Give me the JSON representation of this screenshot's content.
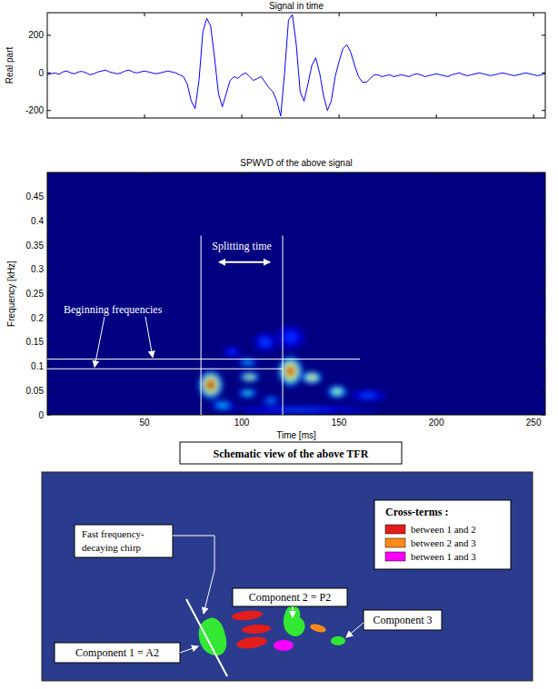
{
  "chart_data": [
    {
      "type": "line",
      "title": "Signal in time",
      "ylabel": "Real part",
      "x": [
        0,
        2,
        4,
        6,
        8,
        10,
        12,
        14,
        16,
        18,
        20,
        22,
        24,
        26,
        28,
        30,
        32,
        34,
        36,
        38,
        40,
        42,
        44,
        46,
        48,
        50,
        52,
        54,
        56,
        58,
        60,
        62,
        64,
        66,
        68,
        70,
        72,
        74,
        76,
        78,
        80,
        82,
        84,
        86,
        88,
        90,
        92,
        94,
        96,
        98,
        100,
        102,
        104,
        106,
        108,
        110,
        112,
        114,
        116,
        118,
        120,
        122,
        124,
        126,
        128,
        130,
        132,
        134,
        136,
        138,
        140,
        142,
        144,
        146,
        148,
        150,
        152,
        154,
        156,
        158,
        160,
        162,
        164,
        166,
        168,
        170,
        172,
        174,
        176,
        178,
        180,
        182,
        184,
        186,
        188,
        190,
        192,
        194,
        196,
        198,
        200,
        202,
        204,
        206,
        208,
        210,
        212,
        214,
        216,
        218,
        220,
        222,
        224,
        226,
        228,
        230,
        232,
        234,
        236,
        238,
        240,
        242,
        244,
        246,
        248,
        250,
        252,
        254,
        256
      ],
      "values": [
        -10,
        -5,
        0,
        -8,
        5,
        10,
        0,
        -5,
        5,
        8,
        0,
        -10,
        -5,
        5,
        10,
        15,
        5,
        0,
        -5,
        0,
        10,
        15,
        5,
        0,
        5,
        10,
        5,
        0,
        -5,
        0,
        5,
        10,
        5,
        0,
        -10,
        -20,
        -60,
        -150,
        -190,
        -40,
        220,
        290,
        250,
        80,
        -110,
        -180,
        -110,
        -40,
        -20,
        -30,
        -10,
        0,
        -20,
        -40,
        -30,
        -20,
        -50,
        -80,
        -100,
        -150,
        -230,
        0,
        280,
        310,
        150,
        -100,
        -150,
        -60,
        40,
        80,
        0,
        -120,
        -200,
        -150,
        -20,
        60,
        130,
        150,
        110,
        40,
        -20,
        -50,
        -50,
        -30,
        -10,
        -10,
        -20,
        -15,
        -10,
        -20,
        -15,
        -10,
        -15,
        -20,
        -10,
        -5,
        -10,
        -20,
        -15,
        -10,
        -5,
        -10,
        -15,
        -20,
        -10,
        -5,
        0,
        -10,
        -15,
        -10,
        -5,
        0,
        -5,
        -10,
        -15,
        -10,
        -5,
        0,
        -5,
        -10,
        -15,
        -10,
        -5,
        0,
        -5,
        -10,
        -15,
        -10,
        -5
      ],
      "color": "#0000ff",
      "xlim": [
        0,
        256
      ],
      "ylim": [
        -240,
        320
      ],
      "xticks": [
        50,
        100,
        150,
        200,
        250
      ],
      "yticks": [
        -200,
        0,
        200
      ],
      "tick_labels": "y",
      "grid": false
    },
    {
      "type": "heatmap",
      "title": "SPWVD of the above signal",
      "xlabel": "Time [ms]",
      "ylabel": "Frequency [kHz]",
      "xlim": [
        0,
        256
      ],
      "ylim": [
        0,
        0.5
      ],
      "xticks": [
        50,
        100,
        150,
        200,
        250
      ],
      "yticks": [
        0,
        0.05,
        0.1,
        0.15,
        0.2,
        0.25,
        0.3,
        0.35,
        0.4,
        0.45
      ],
      "blobs": [
        {
          "x": 130,
          "y": 0.01,
          "dx": 40,
          "dy": 0.008,
          "value": 0.2
        },
        {
          "x": 165,
          "y": 0.04,
          "dx": 10,
          "dy": 0.012,
          "value": 0.2
        },
        {
          "x": 112,
          "y": 0.15,
          "dx": 6,
          "dy": 0.02,
          "value": 0.2
        },
        {
          "x": 125,
          "y": 0.16,
          "dx": 8,
          "dy": 0.025,
          "value": 0.18
        },
        {
          "x": 95,
          "y": 0.13,
          "dx": 5,
          "dy": 0.012,
          "value": 0.18
        },
        {
          "x": 90,
          "y": 0.02,
          "dx": 6,
          "dy": 0.01,
          "value": 0.35
        },
        {
          "x": 115,
          "y": 0.03,
          "dx": 5,
          "dy": 0.008,
          "value": 0.3
        },
        {
          "x": 103,
          "y": 0.108,
          "dx": 5,
          "dy": 0.008,
          "value": 0.35
        },
        {
          "x": 104,
          "y": 0.078,
          "dx": 5,
          "dy": 0.009,
          "value": 0.7
        },
        {
          "x": 103,
          "y": 0.045,
          "dx": 5,
          "dy": 0.008,
          "value": 0.45
        },
        {
          "x": 149,
          "y": 0.048,
          "dx": 5,
          "dy": 0.012,
          "value": 0.6
        },
        {
          "x": 136,
          "y": 0.077,
          "dx": 5,
          "dy": 0.012,
          "value": 0.75
        },
        {
          "x": 125,
          "y": 0.09,
          "dx": 6,
          "dy": 0.03,
          "value": 0.95
        },
        {
          "x": 84,
          "y": 0.062,
          "dx": 6,
          "dy": 0.028,
          "value": 1.0
        }
      ],
      "annotations": [
        {
          "text": "Splitting time",
          "x": [
            79,
            121
          ]
        },
        {
          "text": "Beginning frequencies",
          "y": [
            0.095,
            0.115
          ]
        }
      ]
    }
  ],
  "schematic": {
    "title": "Schematic view of the above TFR",
    "legend": {
      "title": "Cross-terms :",
      "items": [
        {
          "label": "between 1 and 2",
          "color": "#e31c1c"
        },
        {
          "label": "between 2 and 3",
          "color": "#ff8c1a"
        },
        {
          "label": "between 1 and 3",
          "color": "#ff00ff"
        }
      ]
    },
    "labels": {
      "chirp": [
        "Fast frequency-",
        "decaying chirp"
      ],
      "component1": "Component 1 = A2",
      "component2": "Component 2 = P2",
      "component3": "Component 3"
    },
    "component_color": "#33e833"
  }
}
